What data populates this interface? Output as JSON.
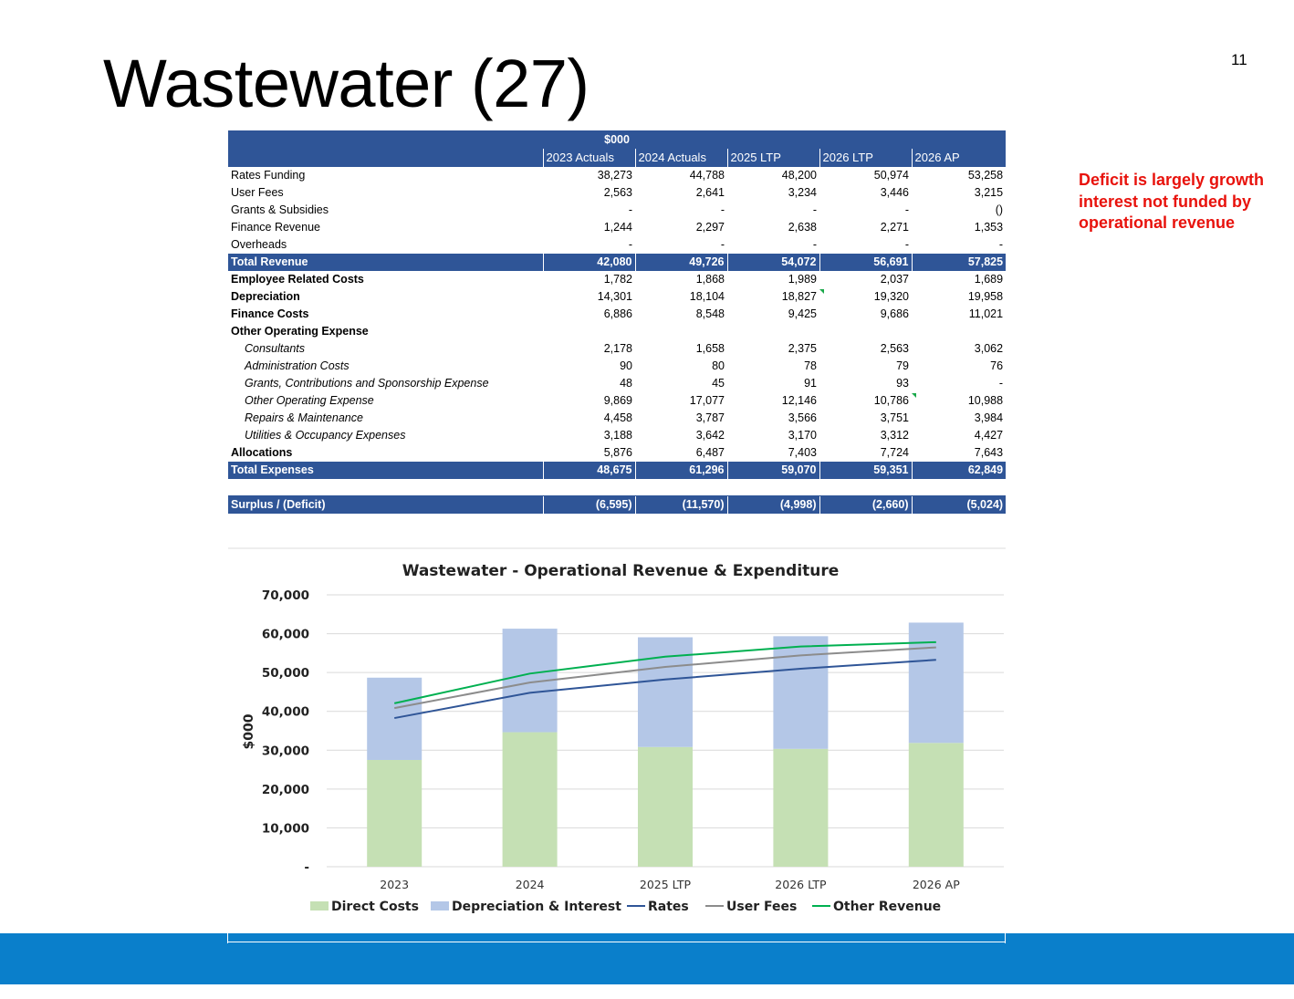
{
  "slide": {
    "title": "Wastewater (27)",
    "page_number": "11",
    "note": "Deficit is largely growth interest not funded by operational revenue"
  },
  "table": {
    "unit_header": "$000",
    "columns": [
      "2023 Actuals",
      "2024 Actuals",
      "2025 LTP",
      "2026 LTP",
      "2026 AP"
    ],
    "rows": [
      {
        "label": "Rates Funding",
        "style": "normal",
        "values": [
          "38,273",
          "44,788",
          "48,200",
          "50,974",
          "53,258"
        ]
      },
      {
        "label": "User Fees",
        "style": "normal",
        "values": [
          "2,563",
          "2,641",
          "3,234",
          "3,446",
          "3,215"
        ]
      },
      {
        "label": "Grants & Subsidies",
        "style": "normal",
        "values": [
          "-",
          "-",
          "-",
          "-",
          "()"
        ]
      },
      {
        "label": "Finance Revenue",
        "style": "normal",
        "values": [
          "1,244",
          "2,297",
          "2,638",
          "2,271",
          "1,353"
        ]
      },
      {
        "label": "Overheads",
        "style": "normal",
        "values": [
          "-",
          "-",
          "-",
          "-",
          "-"
        ]
      },
      {
        "label": "Total Revenue",
        "style": "total",
        "values": [
          "42,080",
          "49,726",
          "54,072",
          "56,691",
          "57,825"
        ]
      },
      {
        "label": "Employee Related Costs",
        "style": "bold",
        "values": [
          "1,782",
          "1,868",
          "1,989",
          "2,037",
          "1,689"
        ]
      },
      {
        "label": "Depreciation",
        "style": "bold",
        "values": [
          "14,301",
          "18,104",
          "18,827",
          "19,320",
          "19,958"
        ]
      },
      {
        "label": "Finance Costs",
        "style": "bold",
        "values": [
          "6,886",
          "8,548",
          "9,425",
          "9,686",
          "11,021"
        ]
      },
      {
        "label": "Other Operating  Expense",
        "style": "bold",
        "values": [
          "",
          "",
          "",
          "",
          ""
        ]
      },
      {
        "label": "Consultants",
        "style": "sub",
        "values": [
          "2,178",
          "1,658",
          "2,375",
          "2,563",
          "3,062"
        ]
      },
      {
        "label": "Administration Costs",
        "style": "sub",
        "values": [
          "90",
          "80",
          "78",
          "79",
          "76"
        ]
      },
      {
        "label": "Grants, Contributions and Sponsorship Expense",
        "style": "sub",
        "values": [
          "48",
          "45",
          "91",
          "93",
          "-"
        ]
      },
      {
        "label": "Other Operating Expense",
        "style": "sub",
        "values": [
          "9,869",
          "17,077",
          "12,146",
          "10,786",
          "10,988"
        ]
      },
      {
        "label": "Repairs & Maintenance",
        "style": "sub",
        "values": [
          "4,458",
          "3,787",
          "3,566",
          "3,751",
          "3,984"
        ]
      },
      {
        "label": "Utilities & Occupancy Expenses",
        "style": "sub",
        "values": [
          "3,188",
          "3,642",
          "3,170",
          "3,312",
          "4,427"
        ]
      },
      {
        "label": "Allocations",
        "style": "bold",
        "values": [
          "5,876",
          "6,487",
          "7,403",
          "7,724",
          "7,643"
        ]
      },
      {
        "label": "Total Expenses",
        "style": "total",
        "values": [
          "48,675",
          "61,296",
          "59,070",
          "59,351",
          "62,849"
        ]
      },
      {
        "label": "",
        "style": "spacer",
        "values": [
          "",
          "",
          "",
          "",
          ""
        ]
      },
      {
        "label": "Surplus / (Deficit)",
        "style": "total",
        "values": [
          "(6,595)",
          "(11,570)",
          "(4,998)",
          "(2,660)",
          "(5,024)"
        ]
      }
    ]
  },
  "chart_data": {
    "type": "bar",
    "stacked": true,
    "title": "Wastewater - Operational Revenue & Expenditure",
    "xlabel": "",
    "ylabel": "$000",
    "ylim": [
      0,
      70000
    ],
    "yticks": [
      0,
      10000,
      20000,
      30000,
      40000,
      50000,
      60000,
      70000
    ],
    "ytick_labels": [
      "-",
      "10,000",
      "20,000",
      "30,000",
      "40,000",
      "50,000",
      "60,000",
      "70,000"
    ],
    "grid": true,
    "legend": "bottom",
    "categories": [
      "2023",
      "2024",
      "2025 LTP",
      "2026 LTP",
      "2026 AP"
    ],
    "bar_series": [
      {
        "name": "Direct Costs",
        "color": "#c5e0b4",
        "values": [
          27488,
          34635,
          30818,
          30345,
          31870
        ]
      },
      {
        "name": "Depreciation & Interest",
        "color": "#b4c7e7",
        "values": [
          21187,
          26652,
          28252,
          29006,
          30979
        ]
      }
    ],
    "line_series": [
      {
        "name": "Rates",
        "color": "#2f5597",
        "values": [
          38273,
          44788,
          48200,
          50974,
          53258
        ]
      },
      {
        "name": "User Fees",
        "color": "#8c8c8c",
        "values": [
          40836,
          47429,
          51434,
          54420,
          56473
        ]
      },
      {
        "name": "Other Revenue",
        "color": "#00b050",
        "values": [
          42080,
          49726,
          54072,
          56691,
          57825
        ]
      }
    ],
    "legend_order": [
      "Direct Costs",
      "Depreciation & Interest",
      "Rates",
      "User Fees",
      "Other Revenue"
    ]
  }
}
